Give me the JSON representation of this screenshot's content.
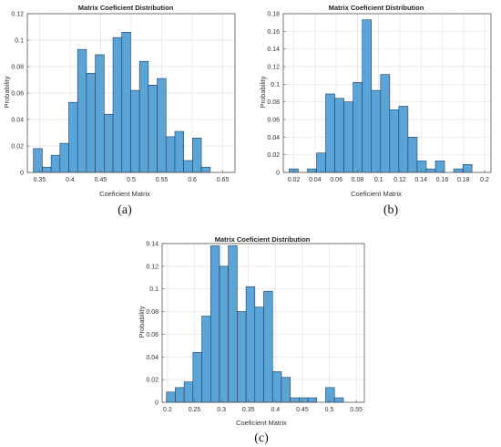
{
  "chart_data": [
    {
      "id": "a",
      "type": "bar",
      "subtype": "histogram",
      "title": "Matrix Coeficient Distribution",
      "xlabel": "Coeficient Matrix",
      "ylabel": "Probability",
      "caption": "(a)",
      "xlim": [
        0.33,
        0.67
      ],
      "ylim": [
        0,
        0.12
      ],
      "xticks": [
        0.35,
        0.4,
        0.45,
        0.5,
        0.55,
        0.6,
        0.65
      ],
      "xtick_labels": [
        "0.35",
        "0.4",
        "0.45",
        "0.5",
        "0.55",
        "0.6",
        "0.65"
      ],
      "yticks": [
        0,
        0.02,
        0.04,
        0.06,
        0.08,
        0.1,
        0.12
      ],
      "ytick_labels": [
        "0",
        "0.02",
        "0.04",
        "0.06",
        "0.08",
        "0.1",
        "0.12"
      ],
      "bin_start": 0.34,
      "bin_width": 0.01447,
      "values": [
        0.018,
        0.004,
        0.013,
        0.022,
        0.053,
        0.093,
        0.075,
        0.089,
        0.044,
        0.102,
        0.106,
        0.062,
        0.084,
        0.066,
        0.071,
        0.027,
        0.031,
        0.009,
        0.026,
        0.004
      ],
      "grid": true
    },
    {
      "id": "b",
      "type": "bar",
      "subtype": "histogram",
      "title": "Matrix Coeficient Distribution",
      "xlabel": "Coeficient Matrix",
      "ylabel": "Probability",
      "caption": "(b)",
      "xlim": [
        0.01,
        0.206
      ],
      "ylim": [
        0,
        0.18
      ],
      "xticks": [
        0.02,
        0.04,
        0.06,
        0.08,
        0.1,
        0.12,
        0.14,
        0.16,
        0.18,
        0.2
      ],
      "xtick_labels": [
        "0.02",
        "0.04",
        "0.06",
        "0.08",
        "0.1",
        "0.12",
        "0.14",
        "0.16",
        "0.18",
        "0.2"
      ],
      "yticks": [
        0,
        0.02,
        0.04,
        0.06,
        0.08,
        0.1,
        0.12,
        0.14,
        0.16,
        0.18
      ],
      "ytick_labels": [
        "0",
        "0.02",
        "0.04",
        "0.06",
        "0.08",
        "0.1",
        "0.12",
        "0.14",
        "0.16",
        "0.18"
      ],
      "bin_start": 0.0155,
      "bin_width": 0.00863,
      "values": [
        0.004,
        0,
        0.004,
        0.022,
        0.089,
        0.084,
        0.08,
        0.102,
        0.173,
        0.093,
        0.111,
        0.071,
        0.075,
        0.04,
        0.013,
        0.004,
        0.013,
        0,
        0.004,
        0.009
      ],
      "grid": true
    },
    {
      "id": "c",
      "type": "bar",
      "subtype": "histogram",
      "title": "Matrix Coeficient Distribution",
      "xlabel": "Coeficient Matrix",
      "ylabel": "Probability",
      "caption": "(c)",
      "xlim": [
        0.19,
        0.565
      ],
      "ylim": [
        0,
        0.14
      ],
      "xticks": [
        0.2,
        0.25,
        0.3,
        0.35,
        0.4,
        0.45,
        0.5,
        0.55
      ],
      "xtick_labels": [
        "0.2",
        "0.25",
        "0.3",
        "0.35",
        "0.4",
        "0.45",
        "0.5",
        "0.55"
      ],
      "yticks": [
        0,
        0.02,
        0.04,
        0.06,
        0.08,
        0.1,
        0.12,
        0.14
      ],
      "ytick_labels": [
        "0",
        "0.02",
        "0.04",
        "0.06",
        "0.08",
        "0.1",
        "0.12",
        "0.14"
      ],
      "bin_start": 0.198,
      "bin_width": 0.0164,
      "values": [
        0.009,
        0.013,
        0.018,
        0.044,
        0.076,
        0.138,
        0.12,
        0.138,
        0.08,
        0.102,
        0.084,
        0.098,
        0.027,
        0.022,
        0.004,
        0.004,
        0.004,
        0,
        0.013,
        0.004
      ],
      "grid": true
    }
  ],
  "colors": {
    "bar_fill": "#5ba4d8",
    "bar_edge": "#1f3f5a",
    "grid": "#e3e3e3",
    "axis": "#555555"
  }
}
